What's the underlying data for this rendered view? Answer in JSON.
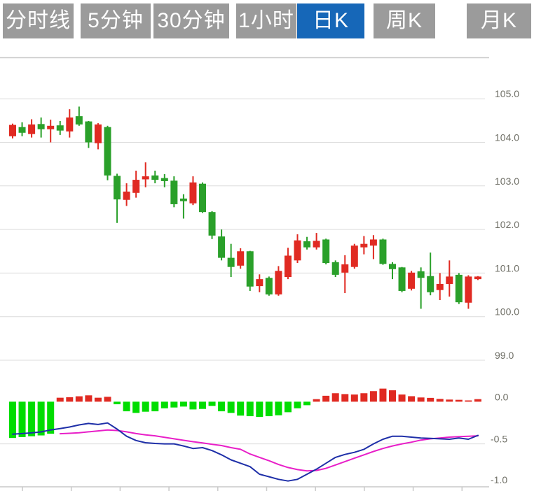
{
  "toolbar": {
    "tabs": [
      {
        "name": "tab-time-line",
        "label": "分时线",
        "active": false
      },
      {
        "name": "tab-5min",
        "label": "5分钟",
        "active": false
      },
      {
        "name": "tab-30min",
        "label": "30分钟",
        "active": false
      },
      {
        "name": "tab-1hour",
        "label": "1小时",
        "active": false
      },
      {
        "name": "tab-daily-k",
        "label": "日K",
        "active": true
      },
      {
        "name": "tab-weekly-k",
        "label": "周K",
        "active": false
      },
      {
        "name": "tab-monthly-k",
        "label": "月K",
        "active": false
      }
    ]
  },
  "colors": {
    "tab_bg": "#9b9b9b",
    "tab_active_bg": "#1667b8",
    "tab_text": "#ffffff",
    "candle_up": "#e02a22",
    "candle_down": "#2aa02a",
    "macd_up": "#e02a22",
    "macd_down": "#00dd00",
    "dif_line": "#1e2fa8",
    "dea_line": "#e81fc8",
    "grid": "#dcdcdc",
    "axis": "#c9c9c9",
    "label_text": "#6f6f66"
  },
  "chart_data": {
    "type": "candlestick+macd",
    "title": "",
    "price_axis": {
      "side": "right",
      "tick_labels": [
        "105.0",
        "104.0",
        "103.0",
        "102.0",
        "101.0",
        "100.0",
        "99.0"
      ],
      "tick_values": [
        105.0,
        104.0,
        103.0,
        102.0,
        101.0,
        100.0,
        99.0
      ],
      "ylim": [
        98.2,
        105.9
      ]
    },
    "macd_axis": {
      "side": "right",
      "tick_labels": [
        "0.0",
        "-0.5",
        "-1.0"
      ],
      "tick_values": [
        0.0,
        -0.5,
        -1.0
      ],
      "ylim": [
        -1.05,
        0.25
      ],
      "gridline_values": [
        -0.5
      ]
    },
    "candles_ohlc": [
      [
        104.14,
        104.43,
        104.09,
        104.4
      ],
      [
        104.35,
        104.46,
        104.14,
        104.22
      ],
      [
        104.19,
        104.53,
        104.11,
        104.41
      ],
      [
        104.42,
        104.57,
        104.11,
        104.3
      ],
      [
        104.3,
        104.52,
        104.0,
        104.38
      ],
      [
        104.39,
        104.49,
        104.17,
        104.27
      ],
      [
        104.25,
        104.76,
        104.11,
        104.57
      ],
      [
        104.6,
        104.82,
        104.38,
        104.41
      ],
      [
        104.48,
        104.49,
        103.87,
        104.0
      ],
      [
        103.98,
        104.44,
        103.84,
        104.41
      ],
      [
        104.35,
        104.38,
        103.13,
        103.24
      ],
      [
        103.23,
        103.28,
        102.15,
        102.69
      ],
      [
        102.68,
        103.06,
        102.54,
        102.87
      ],
      [
        102.84,
        103.35,
        102.73,
        103.14
      ],
      [
        103.15,
        103.54,
        102.97,
        103.22
      ],
      [
        103.24,
        103.35,
        103.06,
        103.14
      ],
      [
        103.18,
        103.27,
        102.97,
        103.11
      ],
      [
        103.12,
        103.22,
        102.51,
        102.58
      ],
      [
        102.71,
        102.81,
        102.25,
        102.65
      ],
      [
        102.6,
        103.22,
        102.56,
        103.08
      ],
      [
        103.05,
        103.08,
        102.38,
        102.4
      ],
      [
        102.4,
        102.42,
        101.78,
        101.86
      ],
      [
        101.84,
        102.0,
        101.29,
        101.35
      ],
      [
        101.35,
        101.67,
        100.91,
        101.14
      ],
      [
        101.17,
        101.57,
        101.1,
        101.5
      ],
      [
        101.5,
        101.51,
        100.59,
        100.69
      ],
      [
        100.7,
        100.97,
        100.56,
        100.86
      ],
      [
        100.89,
        100.92,
        100.48,
        100.51
      ],
      [
        100.51,
        101.16,
        100.48,
        101.05
      ],
      [
        100.91,
        101.58,
        100.86,
        101.4
      ],
      [
        101.29,
        101.89,
        101.23,
        101.75
      ],
      [
        101.73,
        101.83,
        101.54,
        101.59
      ],
      [
        101.59,
        101.92,
        101.54,
        101.74
      ],
      [
        101.77,
        101.79,
        101.2,
        101.23
      ],
      [
        101.25,
        101.29,
        100.91,
        100.96
      ],
      [
        101.01,
        101.41,
        100.54,
        101.2
      ],
      [
        101.14,
        101.67,
        101.1,
        101.63
      ],
      [
        101.59,
        101.85,
        101.43,
        101.67
      ],
      [
        101.63,
        101.87,
        101.32,
        101.77
      ],
      [
        101.77,
        101.79,
        101.19,
        101.21
      ],
      [
        101.21,
        101.25,
        100.86,
        101.09
      ],
      [
        101.13,
        101.14,
        100.56,
        100.59
      ],
      [
        100.64,
        101.05,
        100.6,
        101.01
      ],
      [
        101.04,
        101.13,
        100.18,
        100.89
      ],
      [
        100.93,
        101.47,
        100.49,
        100.56
      ],
      [
        100.61,
        101.0,
        100.38,
        100.75
      ],
      [
        100.75,
        101.29,
        100.46,
        100.92
      ],
      [
        100.96,
        101.0,
        100.29,
        100.33
      ],
      [
        100.32,
        100.95,
        100.18,
        100.92
      ],
      [
        100.86,
        100.93,
        100.84,
        100.92
      ]
    ],
    "macd": {
      "histogram": [
        -0.43,
        -0.42,
        -0.41,
        -0.4,
        -0.38,
        0.047,
        0.053,
        0.064,
        0.075,
        0.047,
        0.058,
        -0.03,
        -0.114,
        -0.133,
        -0.119,
        -0.114,
        -0.078,
        -0.069,
        -0.058,
        -0.092,
        -0.086,
        -0.05,
        -0.114,
        -0.133,
        -0.165,
        -0.172,
        -0.181,
        -0.172,
        -0.161,
        -0.125,
        -0.078,
        -0.042,
        0.03,
        0.07,
        0.1,
        0.09,
        0.085,
        0.1,
        0.125,
        0.155,
        0.135,
        0.085,
        0.065,
        0.05,
        0.045,
        0.033,
        0.025,
        0.022,
        0.015,
        0.03
      ],
      "dif": [
        -0.385,
        -0.378,
        -0.37,
        -0.358,
        -0.335,
        -0.318,
        -0.3,
        -0.275,
        -0.258,
        -0.27,
        -0.252,
        -0.325,
        -0.41,
        -0.46,
        -0.487,
        -0.495,
        -0.5,
        -0.5,
        -0.525,
        -0.555,
        -0.545,
        -0.58,
        -0.63,
        -0.69,
        -0.73,
        -0.77,
        -0.86,
        -0.89,
        -0.92,
        -0.94,
        -0.92,
        -0.86,
        -0.8,
        -0.73,
        -0.66,
        -0.625,
        -0.6,
        -0.565,
        -0.5,
        -0.445,
        -0.41,
        -0.41,
        -0.42,
        -0.43,
        -0.435,
        -0.44,
        -0.445,
        -0.43,
        -0.445,
        -0.4
      ],
      "dea": [
        null,
        null,
        null,
        null,
        null,
        -0.38,
        -0.375,
        -0.368,
        -0.357,
        -0.347,
        -0.335,
        -0.342,
        -0.357,
        -0.378,
        -0.393,
        -0.405,
        -0.422,
        -0.44,
        -0.458,
        -0.474,
        -0.488,
        -0.505,
        -0.52,
        -0.545,
        -0.565,
        -0.62,
        -0.66,
        -0.7,
        -0.745,
        -0.78,
        -0.805,
        -0.82,
        -0.815,
        -0.79,
        -0.75,
        -0.71,
        -0.67,
        -0.63,
        -0.59,
        -0.555,
        -0.525,
        -0.5,
        -0.48,
        -0.455,
        -0.44,
        -0.43,
        -0.42,
        -0.415,
        -0.41,
        -0.405
      ]
    }
  }
}
